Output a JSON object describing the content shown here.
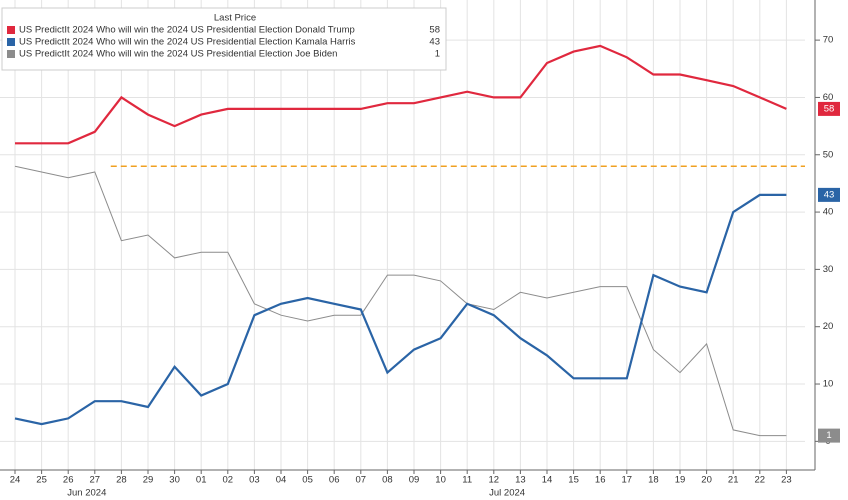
{
  "chart_data": {
    "type": "line",
    "legend_title": "Last Price",
    "categories": [
      "24",
      "25",
      "26",
      "27",
      "28",
      "29",
      "30",
      "01",
      "02",
      "03",
      "04",
      "05",
      "06",
      "07",
      "08",
      "09",
      "10",
      "11",
      "12",
      "13",
      "14",
      "15",
      "16",
      "17",
      "18",
      "19",
      "20",
      "21",
      "22",
      "23"
    ],
    "x_group_labels": [
      "Jun 2024",
      "Jul 2024"
    ],
    "series": [
      {
        "name": "US PredictIt 2024 Who will win the 2024 US Presidential Election Donald Trump",
        "color": "#e0283e",
        "values": [
          52,
          52,
          52,
          54,
          60,
          57,
          55,
          57,
          58,
          58,
          58,
          58,
          58,
          58,
          59,
          59,
          60,
          61,
          60,
          60,
          66,
          68,
          69,
          67,
          64,
          64,
          63,
          62,
          60,
          58
        ]
      },
      {
        "name": "US PredictIt 2024 Who will win the 2024 US Presidential Election Kamala Harris",
        "color": "#2a64a6",
        "values": [
          4,
          3,
          4,
          7,
          7,
          6,
          13,
          8,
          10,
          22,
          24,
          25,
          24,
          23,
          12,
          16,
          18,
          24,
          22,
          18,
          15,
          11,
          11,
          11,
          29,
          27,
          26,
          40,
          43,
          43
        ]
      },
      {
        "name": "US PredictIt 2024 Who will win the 2024 US Presidential Election Joe Biden",
        "color": "#8c8c8c",
        "values": [
          48,
          47,
          46,
          47,
          35,
          36,
          32,
          33,
          33,
          24,
          22,
          21,
          22,
          22,
          29,
          29,
          28,
          24,
          23,
          26,
          25,
          26,
          27,
          27,
          16,
          12,
          17,
          2,
          1,
          1
        ]
      }
    ],
    "reference_line": {
      "value": 48,
      "color": "#f0a020"
    },
    "ylim": [
      -5,
      77
    ],
    "yticks": [
      0,
      10,
      20,
      30,
      40,
      50,
      60,
      70
    ],
    "grid": true
  }
}
